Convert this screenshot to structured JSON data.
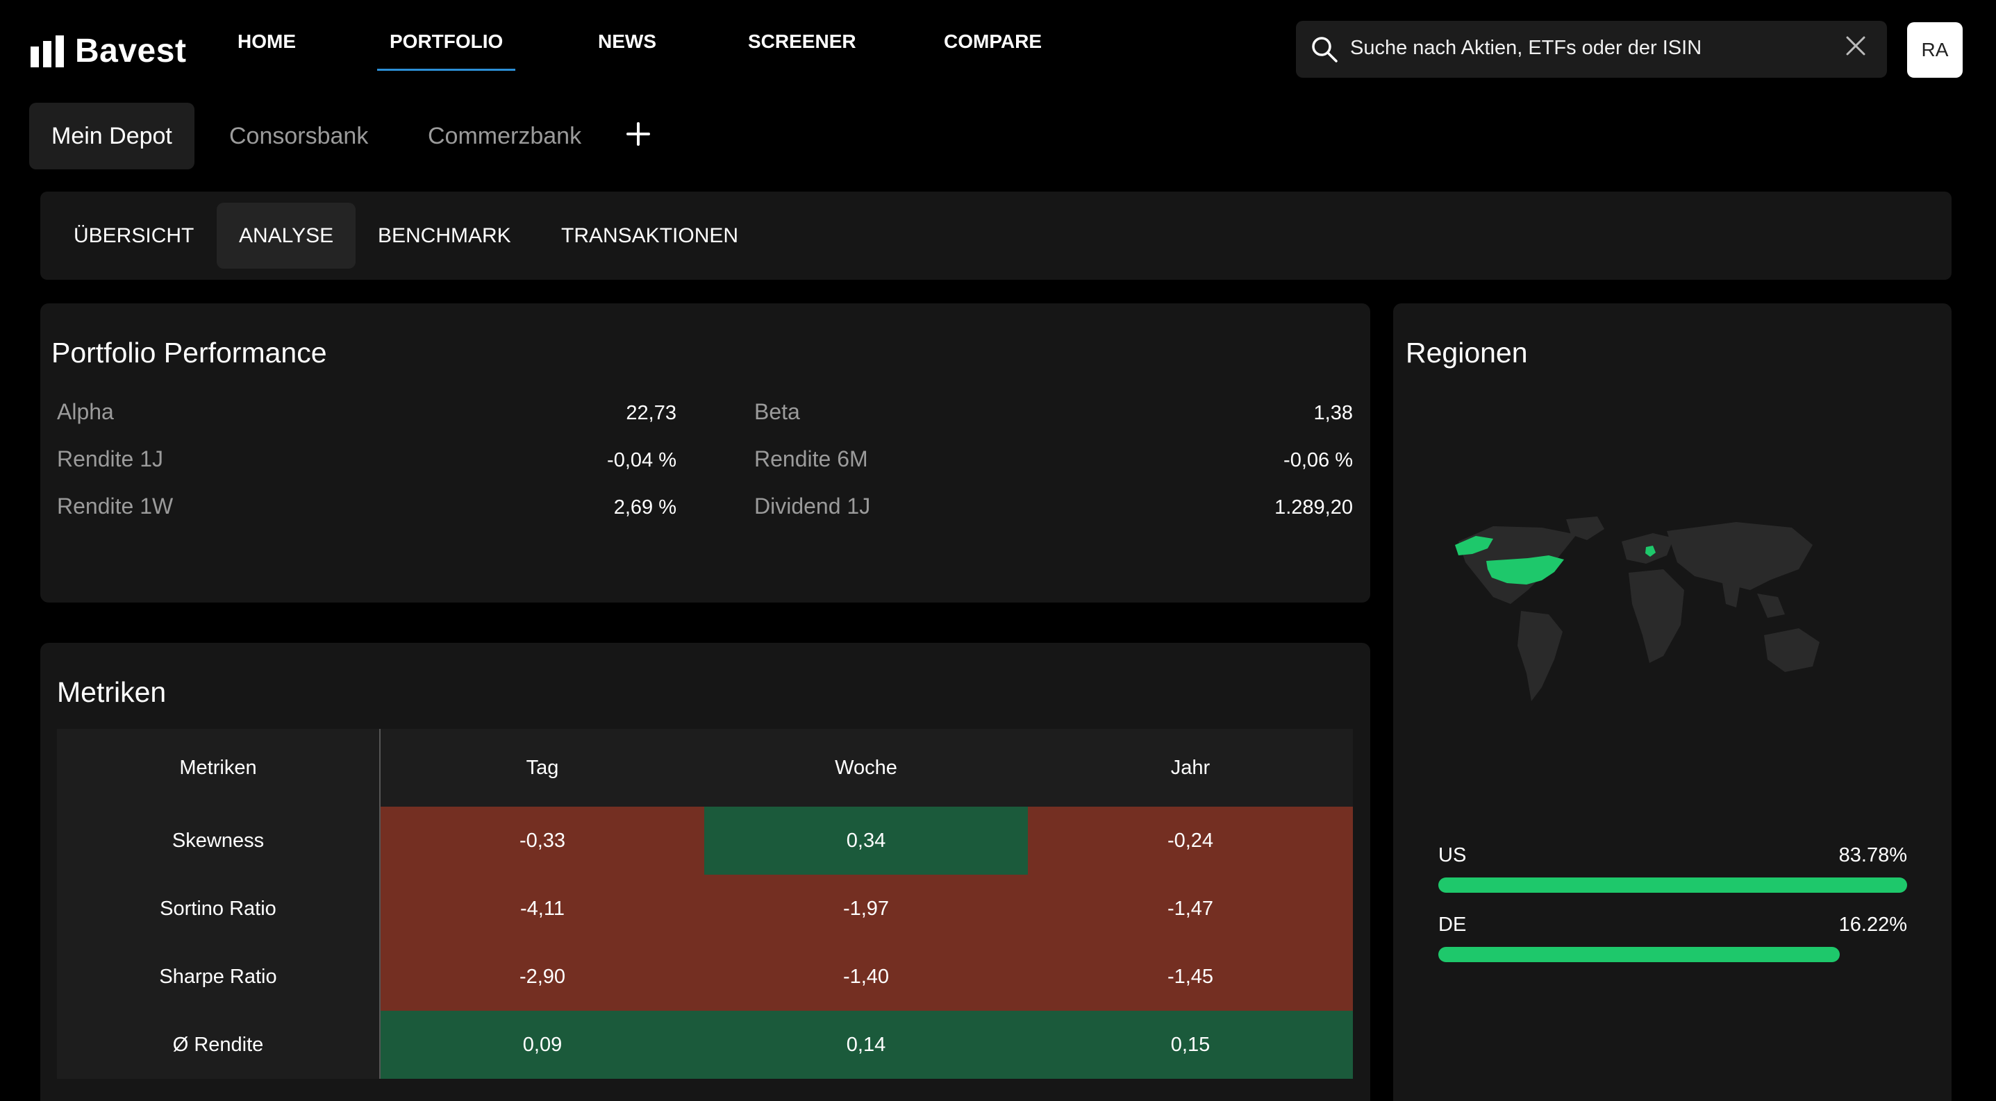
{
  "app": {
    "logo_text": "Bavest",
    "nav": [
      "HOME",
      "PORTFOLIO",
      "NEWS",
      "SCREENER",
      "COMPARE"
    ],
    "nav_active": "PORTFOLIO"
  },
  "search": {
    "placeholder": "Suche nach Aktien, ETFs oder der ISIN"
  },
  "user": {
    "initials": "RA"
  },
  "depots": {
    "tabs": [
      "Mein Depot",
      "Consorsbank",
      "Commerzbank"
    ],
    "active": "Mein Depot"
  },
  "subtabs": {
    "items": [
      "ÜBERSICHT",
      "ANALYSE",
      "BENCHMARK",
      "TRANSAKTIONEN"
    ],
    "active": "ANALYSE"
  },
  "performance": {
    "title": "Portfolio Performance",
    "left": [
      {
        "label": "Alpha",
        "value": "22,73"
      },
      {
        "label": "Rendite 1J",
        "value": "-0,04 %"
      },
      {
        "label": "Rendite 1W",
        "value": "2,69 %"
      }
    ],
    "right": [
      {
        "label": "Beta",
        "value": "1,38"
      },
      {
        "label": "Rendite 6M",
        "value": "-0,06 %"
      },
      {
        "label": "Dividend 1J",
        "value": "1.289,20"
      }
    ]
  },
  "metrics": {
    "title": "Metriken",
    "headers": [
      "Metriken",
      "Tag",
      "Woche",
      "Jahr"
    ],
    "rows": [
      {
        "label": "Skewness",
        "values": [
          "-0,33",
          "0,34",
          "-0,24"
        ]
      },
      {
        "label": "Sortino Ratio",
        "values": [
          "-4,11",
          "-1,97",
          "-1,47"
        ]
      },
      {
        "label": "Sharpe Ratio",
        "values": [
          "-2,90",
          "-1,40",
          "-1,45"
        ]
      },
      {
        "label": "Ø Rendite",
        "values": [
          "0,09",
          "0,14",
          "0,15"
        ]
      }
    ],
    "colors": {
      "negative": "#742f22",
      "positive": "#1b5a3b"
    }
  },
  "regions": {
    "title": "Regionen",
    "items": [
      {
        "label": "US",
        "pct": "83.78%",
        "share": 83.78
      },
      {
        "label": "DE",
        "pct": "16.22%",
        "share": 16.22
      }
    ],
    "accent": "#1ec86b"
  }
}
